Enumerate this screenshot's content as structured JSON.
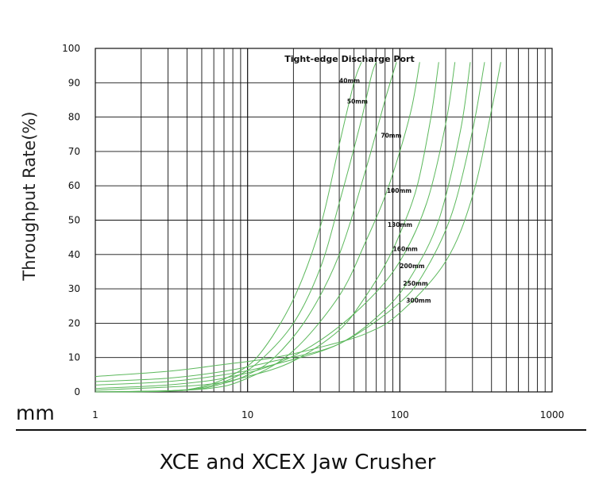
{
  "chart_data": {
    "type": "line",
    "title": "Tight-edge Discharge Port",
    "xlabel": "mm",
    "ylabel": "Throughput Rate(%)",
    "xscale": "log",
    "xlim": [
      1,
      1000
    ],
    "ylim": [
      0,
      100
    ],
    "x_ticks": [
      "1",
      "10",
      "100",
      "1000"
    ],
    "y_ticks": [
      "0",
      "10",
      "20",
      "30",
      "40",
      "50",
      "60",
      "70",
      "80",
      "90",
      "100"
    ],
    "grid": true,
    "line_color": "#5cb85c",
    "series": [
      {
        "name": "40mm",
        "label_at": [
          40,
          90
        ],
        "points": [
          [
            1,
            0
          ],
          [
            3,
            0.3
          ],
          [
            5,
            1.5
          ],
          [
            8,
            5
          ],
          [
            12,
            11
          ],
          [
            20,
            27
          ],
          [
            30,
            48
          ],
          [
            40,
            72
          ],
          [
            50,
            90
          ],
          [
            56,
            96
          ]
        ]
      },
      {
        "name": "50mm",
        "label_at": [
          45,
          84
        ],
        "points": [
          [
            1,
            0
          ],
          [
            3,
            0.2
          ],
          [
            5,
            1.2
          ],
          [
            8,
            4
          ],
          [
            12,
            9
          ],
          [
            20,
            20
          ],
          [
            30,
            36
          ],
          [
            40,
            55
          ],
          [
            55,
            78
          ],
          [
            65,
            92
          ],
          [
            70,
            96
          ]
        ]
      },
      {
        "name": "70mm",
        "label_at": [
          75,
          74
        ],
        "points": [
          [
            1,
            0
          ],
          [
            4,
            0.5
          ],
          [
            7,
            2.5
          ],
          [
            10,
            5
          ],
          [
            15,
            10
          ],
          [
            25,
            22
          ],
          [
            40,
            40
          ],
          [
            60,
            65
          ],
          [
            80,
            85
          ],
          [
            95,
            96
          ]
        ]
      },
      {
        "name": "100mm",
        "label_at": [
          82,
          58
        ],
        "points": [
          [
            1,
            0
          ],
          [
            5,
            0.8
          ],
          [
            10,
            4
          ],
          [
            20,
            12
          ],
          [
            40,
            28
          ],
          [
            60,
            44
          ],
          [
            80,
            57
          ],
          [
            100,
            70
          ],
          [
            120,
            83
          ],
          [
            135,
            96
          ]
        ]
      },
      {
        "name": "130mm",
        "label_at": [
          83,
          48
        ],
        "points": [
          [
            1,
            0.5
          ],
          [
            5,
            2
          ],
          [
            10,
            4.5
          ],
          [
            20,
            9
          ],
          [
            40,
            18
          ],
          [
            60,
            28
          ],
          [
            80,
            37
          ],
          [
            100,
            46
          ],
          [
            130,
            60
          ],
          [
            160,
            80
          ],
          [
            180,
            96
          ]
        ]
      },
      {
        "name": "160mm",
        "label_at": [
          90,
          41
        ],
        "points": [
          [
            1,
            1
          ],
          [
            3,
            2
          ],
          [
            7,
            4
          ],
          [
            15,
            8
          ],
          [
            30,
            15
          ],
          [
            60,
            26
          ],
          [
            100,
            38
          ],
          [
            150,
            55
          ],
          [
            200,
            78
          ],
          [
            230,
            96
          ]
        ]
      },
      {
        "name": "200mm",
        "label_at": [
          100,
          36
        ],
        "points": [
          [
            1,
            2
          ],
          [
            3,
            3
          ],
          [
            7,
            5
          ],
          [
            15,
            8
          ],
          [
            40,
            14
          ],
          [
            80,
            24
          ],
          [
            120,
            34
          ],
          [
            180,
            50
          ],
          [
            250,
            76
          ],
          [
            290,
            96
          ]
        ]
      },
      {
        "name": "250mm",
        "label_at": [
          105,
          31
        ],
        "points": [
          [
            1,
            3
          ],
          [
            3,
            4
          ],
          [
            7,
            6
          ],
          [
            15,
            9
          ],
          [
            40,
            14
          ],
          [
            100,
            26
          ],
          [
            150,
            36
          ],
          [
            220,
            52
          ],
          [
            300,
            76
          ],
          [
            360,
            96
          ]
        ]
      },
      {
        "name": "300mm",
        "label_at": [
          110,
          26
        ],
        "points": [
          [
            1,
            4.5
          ],
          [
            3,
            6
          ],
          [
            7,
            8
          ],
          [
            15,
            10
          ],
          [
            30,
            13
          ],
          [
            60,
            17
          ],
          [
            100,
            23
          ],
          [
            200,
            38
          ],
          [
            300,
            57
          ],
          [
            400,
            82
          ],
          [
            460,
            96
          ]
        ]
      }
    ]
  },
  "caption": "XCE and XCEX Jaw Crusher"
}
